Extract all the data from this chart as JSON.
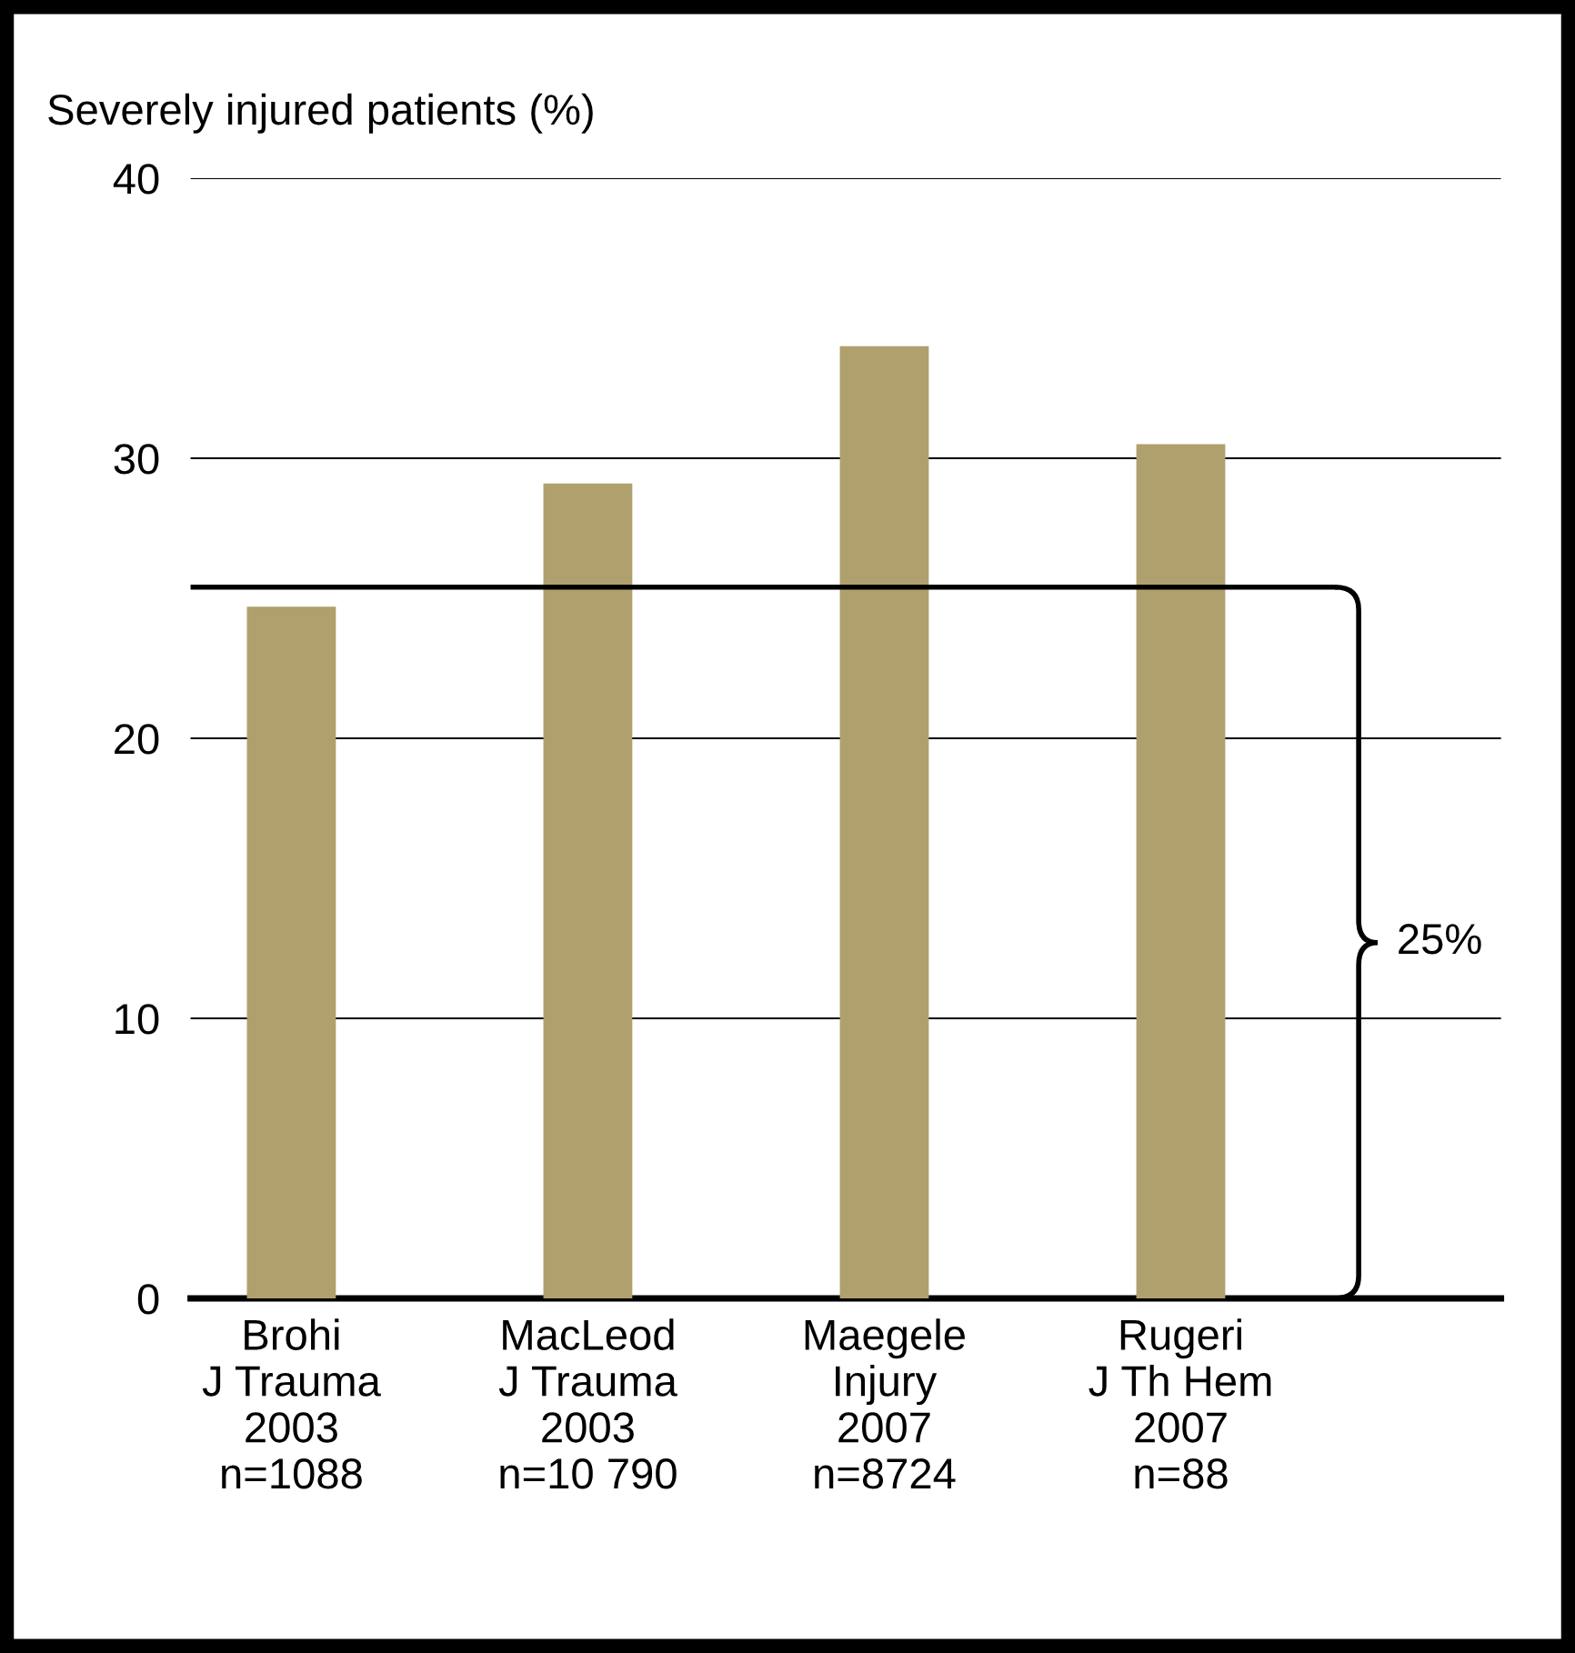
{
  "chart_data": {
    "type": "bar",
    "ylabel": "Severely injured patients (%)",
    "categories": [
      "Brohi\nJ Trauma\n2003\nn=1088",
      "MacLeod\nJ Trauma\n2003\nn=10 790",
      "Maegele\nInjury\n2007\nn=8724",
      "Rugeri\nJ Th Hem\n2007\nn=88"
    ],
    "values": [
      24.7,
      29.1,
      34.0,
      30.5
    ],
    "color": "#b0a06d",
    "ylim": [
      0,
      40
    ],
    "yticks": [
      0,
      10,
      20,
      30,
      40
    ],
    "grid": "y",
    "ref_lines": [
      {
        "axis": "y",
        "value": 25.4,
        "label": "25%",
        "color": "#000000"
      }
    ]
  }
}
